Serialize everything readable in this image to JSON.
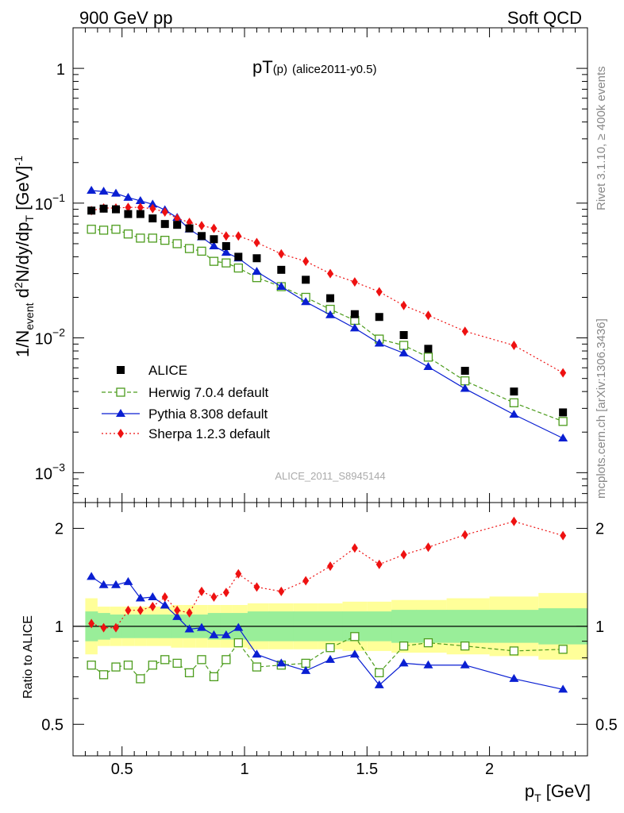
{
  "header": {
    "left": "900 GeV pp",
    "right": "Soft QCD",
    "plot_title": "pT",
    "plot_title_sub": "(p)",
    "plot_title_tail": "(alice2011-y0.5)"
  },
  "side": {
    "rivet": "Rivet 3.1.10, ≥ 400k events",
    "mcplots": "mcplots.cern.ch [arXiv:1306.3436]"
  },
  "watermark": "ALICE_2011_S8945144",
  "axes": {
    "ylabel_top": "1/N",
    "ylabel_top_sub": "event",
    "ylabel_top_mid": " d",
    "ylabel_top_sup": "2",
    "ylabel_top_tail": "N/dy/dp",
    "ylabel_top_sub2": "T",
    "ylabel_top_unit": " [GeV]",
    "ylabel_top_unit_sup": "-1",
    "ylabel_bottom": "Ratio to ALICE",
    "xlabel": "p",
    "xlabel_sub": "T",
    "xlabel_unit": " [GeV]",
    "top_ticks": [
      {
        "v": 1,
        "base": "1",
        "exp": ""
      },
      {
        "v": 0.1,
        "base": "10",
        "exp": "−1"
      },
      {
        "v": 0.01,
        "base": "10",
        "exp": "−2"
      },
      {
        "v": 0.001,
        "base": "10",
        "exp": "−3"
      }
    ],
    "ratio_ticks": [
      {
        "v": 2,
        "label": "2"
      },
      {
        "v": 1,
        "label": "1"
      },
      {
        "v": 0.5,
        "label": "0.5"
      }
    ],
    "x_ticks": [
      {
        "v": 0.5,
        "label": "0.5"
      },
      {
        "v": 1,
        "label": "1"
      },
      {
        "v": 1.5,
        "label": "1.5"
      },
      {
        "v": 2,
        "label": "2"
      }
    ]
  },
  "legend": [
    {
      "name": "ALICE",
      "color": "#000000"
    },
    {
      "name": "Herwig 7.0.4 default",
      "color": "#4c9c1c"
    },
    {
      "name": "Pythia 8.308 default",
      "color": "#0a1fd2"
    },
    {
      "name": "Sherpa 1.2.3 default",
      "color": "#ee1111"
    }
  ],
  "chart_data": {
    "type": "scatter",
    "x_range": [
      0.3,
      2.4
    ],
    "y_log_range": [
      0.0006,
      2
    ],
    "ratio_log_range": [
      0.4,
      2.4
    ],
    "x": [
      0.375,
      0.425,
      0.475,
      0.525,
      0.575,
      0.625,
      0.675,
      0.725,
      0.775,
      0.825,
      0.875,
      0.925,
      0.975,
      1.05,
      1.15,
      1.25,
      1.35,
      1.45,
      1.55,
      1.65,
      1.75,
      1.9,
      2.1,
      2.3
    ],
    "series": [
      {
        "name": "ALICE",
        "values": [
          0.088,
          0.091,
          0.09,
          0.083,
          0.083,
          0.077,
          0.07,
          0.069,
          0.065,
          0.057,
          0.054,
          0.048,
          0.04,
          0.039,
          0.032,
          0.027,
          0.0197,
          0.015,
          0.0143,
          0.0105,
          0.0083,
          0.0057,
          0.004,
          0.0028
        ]
      },
      {
        "name": "Herwig 7.0.4 default",
        "values": [
          0.064,
          0.063,
          0.064,
          0.059,
          0.055,
          0.055,
          0.053,
          0.05,
          0.046,
          0.044,
          0.037,
          0.036,
          0.033,
          0.028,
          0.024,
          0.02,
          0.0163,
          0.0135,
          0.0098,
          0.0088,
          0.0072,
          0.0048,
          0.0033,
          0.0024
        ]
      },
      {
        "name": "Pythia 8.308 default",
        "values": [
          0.124,
          0.122,
          0.118,
          0.11,
          0.104,
          0.098,
          0.089,
          0.078,
          0.064,
          0.056,
          0.048,
          0.043,
          0.039,
          0.031,
          0.024,
          0.0185,
          0.0148,
          0.0118,
          0.0091,
          0.0077,
          0.0061,
          0.0042,
          0.0027,
          0.0018
        ]
      },
      {
        "name": "Sherpa 1.2.3 default",
        "values": [
          0.088,
          0.092,
          0.092,
          0.093,
          0.093,
          0.091,
          0.086,
          0.077,
          0.072,
          0.068,
          0.065,
          0.057,
          0.057,
          0.051,
          0.042,
          0.037,
          0.03,
          0.026,
          0.022,
          0.0174,
          0.0147,
          0.0112,
          0.0088,
          0.0055
        ]
      }
    ],
    "ratio": [
      {
        "name": "Herwig 7.0.4 default",
        "values": [
          0.76,
          0.71,
          0.75,
          0.76,
          0.69,
          0.76,
          0.79,
          0.77,
          0.72,
          0.79,
          0.7,
          0.79,
          0.89,
          0.75,
          0.76,
          0.77,
          0.86,
          0.93,
          0.72,
          0.87,
          0.89,
          0.87,
          0.84,
          0.85
        ]
      },
      {
        "name": "Pythia 8.308 default",
        "values": [
          1.42,
          1.34,
          1.34,
          1.37,
          1.22,
          1.23,
          1.16,
          1.07,
          0.98,
          0.99,
          0.94,
          0.94,
          0.99,
          0.82,
          0.77,
          0.73,
          0.79,
          0.82,
          0.66,
          0.77,
          0.76,
          0.76,
          0.69,
          0.64
        ]
      },
      {
        "name": "Sherpa 1.2.3 default",
        "values": [
          1.02,
          0.99,
          0.99,
          1.12,
          1.12,
          1.15,
          1.23,
          1.12,
          1.1,
          1.28,
          1.23,
          1.27,
          1.45,
          1.32,
          1.28,
          1.38,
          1.53,
          1.74,
          1.55,
          1.66,
          1.75,
          1.91,
          2.1,
          1.9
        ]
      }
    ],
    "ratio_band_inner": [
      0.9,
      0.91,
      0.92,
      0.92,
      0.92,
      0.92,
      0.92,
      0.92,
      0.92,
      0.92,
      0.91,
      0.91,
      0.91,
      0.9,
      0.9,
      0.9,
      0.9,
      0.9,
      0.9,
      0.89,
      0.89,
      0.89,
      0.89,
      0.88
    ],
    "ratio_band_outer": [
      0.82,
      0.87,
      0.87,
      0.87,
      0.87,
      0.87,
      0.87,
      0.86,
      0.86,
      0.86,
      0.86,
      0.86,
      0.86,
      0.85,
      0.85,
      0.85,
      0.85,
      0.84,
      0.84,
      0.83,
      0.83,
      0.82,
      0.81,
      0.79
    ]
  }
}
